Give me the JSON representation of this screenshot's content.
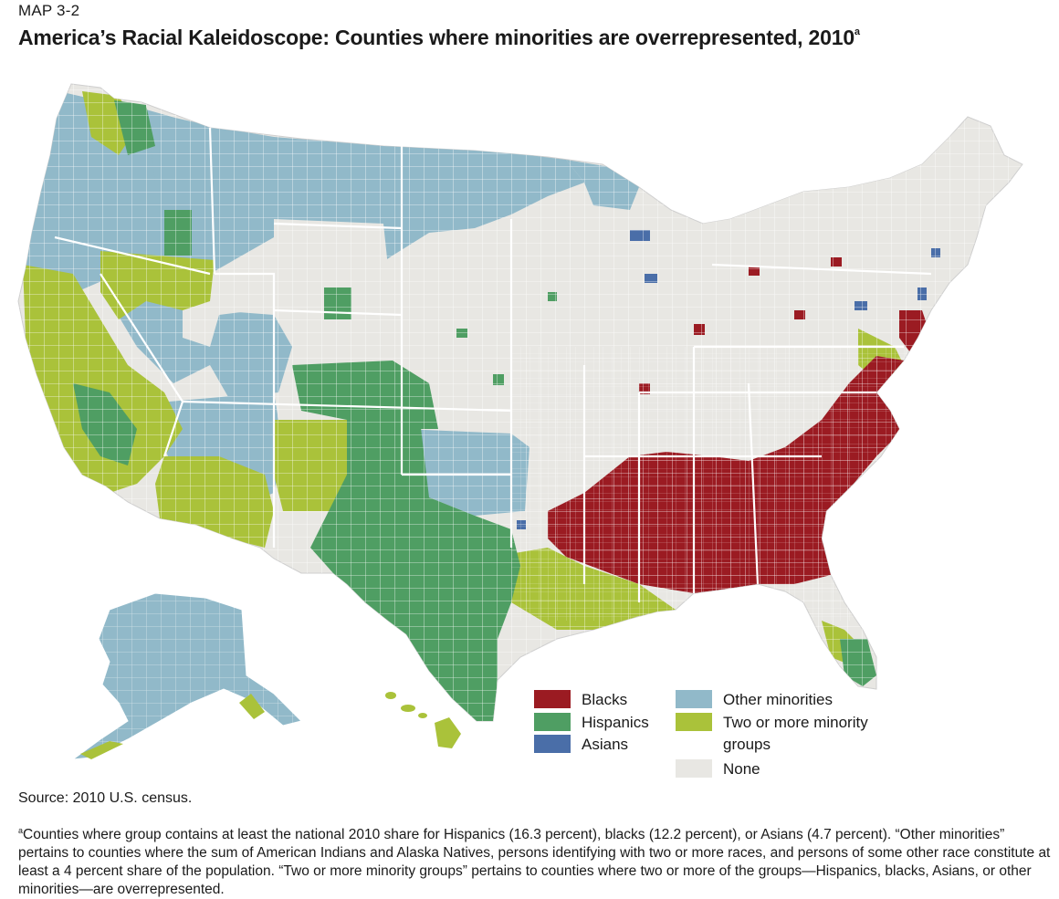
{
  "map_label": "MAP 3-2",
  "title": "America’s Racial Kaleidoscope: Counties where minorities are overrepresented, 2010",
  "title_note_marker": "a",
  "legend": {
    "items": [
      {
        "label": "Blacks",
        "color": "#9b1b22"
      },
      {
        "label": "Hispanics",
        "color": "#4f9e63"
      },
      {
        "label": "Asians",
        "color": "#4a6ea8"
      },
      {
        "label": "Other minorities",
        "color": "#91b9c9"
      },
      {
        "label": "Two or more minority groups",
        "color": "#aac23a"
      },
      {
        "label": "None",
        "color": "#e8e7e3"
      }
    ]
  },
  "source": "Source: 2010 U.S. census.",
  "footnote": {
    "marker": "a",
    "text": "Counties where group contains at least the national 2010 share for Hispanics (16.3 percent), blacks (12.2 percent), or Asians (4.7 percent). “Other minorities” pertains to counties where the sum of American Indians and Alaska Natives, persons identifying with two or more races, and persons of some other race constitute at least a 4 percent share of the population. “Two or more minority groups” pertains to counties where two or more of the groups—Hispanics, blacks, Asians, or other minorities—are overrepresented."
  }
}
